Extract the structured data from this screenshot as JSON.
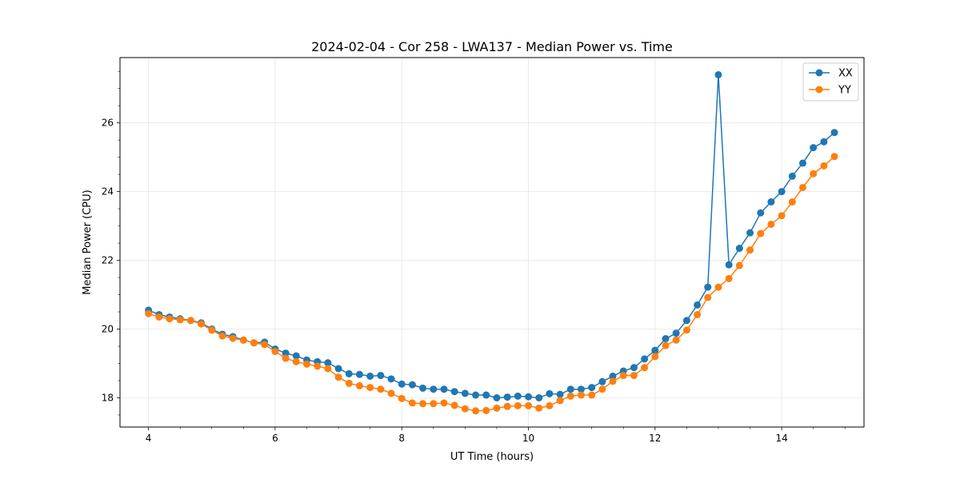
{
  "chart_data": {
    "type": "line",
    "title": "2024-02-04 - Cor 258 - LWA137 - Median Power vs. Time",
    "xlabel": "UT Time (hours)",
    "ylabel": "Median Power (CPU)",
    "xlim": [
      3.55,
      15.3
    ],
    "ylim": [
      17.15,
      27.9
    ],
    "xticks": [
      4,
      6,
      8,
      10,
      12,
      14
    ],
    "xtick_labels": [
      "4",
      "6",
      "8",
      "10",
      "12",
      "14"
    ],
    "yticks": [
      18,
      20,
      22,
      24,
      26
    ],
    "ytick_labels": [
      "18",
      "20",
      "22",
      "24",
      "26"
    ],
    "grid": true,
    "legend_position": "upper right",
    "series": [
      {
        "name": "XX",
        "color": "#1f77b4",
        "x": [
          4.0,
          4.167,
          4.333,
          4.5,
          4.667,
          4.833,
          5.0,
          5.167,
          5.333,
          5.5,
          5.667,
          5.833,
          6.0,
          6.167,
          6.333,
          6.5,
          6.667,
          6.833,
          7.0,
          7.167,
          7.333,
          7.5,
          7.667,
          7.833,
          8.0,
          8.167,
          8.333,
          8.5,
          8.667,
          8.833,
          9.0,
          9.167,
          9.333,
          9.5,
          9.667,
          9.833,
          10.0,
          10.167,
          10.333,
          10.5,
          10.667,
          10.833,
          11.0,
          11.167,
          11.333,
          11.5,
          11.667,
          11.833,
          12.0,
          12.167,
          12.333,
          12.5,
          12.667,
          12.833,
          13.0,
          13.167,
          13.333,
          13.5,
          13.667,
          13.833,
          14.0,
          14.167,
          14.333,
          14.5,
          14.667,
          14.833
        ],
        "values": [
          20.55,
          20.42,
          20.35,
          20.3,
          20.25,
          20.18,
          20.0,
          19.85,
          19.78,
          19.68,
          19.6,
          19.62,
          19.42,
          19.3,
          19.22,
          19.1,
          19.05,
          19.02,
          18.85,
          18.7,
          18.68,
          18.63,
          18.65,
          18.55,
          18.4,
          18.38,
          18.28,
          18.25,
          18.25,
          18.18,
          18.13,
          18.08,
          18.08,
          18.0,
          18.02,
          18.05,
          18.03,
          18.0,
          18.12,
          18.1,
          18.25,
          18.25,
          18.3,
          18.47,
          18.63,
          18.78,
          18.88,
          19.13,
          19.38,
          19.72,
          19.88,
          20.25,
          20.7,
          21.22,
          27.4,
          21.87,
          22.35,
          22.8,
          23.38,
          23.7,
          24.0,
          24.45,
          24.83,
          25.28,
          25.45,
          25.72
        ]
      },
      {
        "name": "YY",
        "color": "#ff7f0e",
        "x": [
          4.0,
          4.167,
          4.333,
          4.5,
          4.667,
          4.833,
          5.0,
          5.167,
          5.333,
          5.5,
          5.667,
          5.833,
          6.0,
          6.167,
          6.333,
          6.5,
          6.667,
          6.833,
          7.0,
          7.167,
          7.333,
          7.5,
          7.667,
          7.833,
          8.0,
          8.167,
          8.333,
          8.5,
          8.667,
          8.833,
          9.0,
          9.167,
          9.333,
          9.5,
          9.667,
          9.833,
          10.0,
          10.167,
          10.333,
          10.5,
          10.667,
          10.833,
          11.0,
          11.167,
          11.333,
          11.5,
          11.667,
          11.833,
          12.0,
          12.167,
          12.333,
          12.5,
          12.667,
          12.833,
          13.0,
          13.167,
          13.333,
          13.5,
          13.667,
          13.833,
          14.0,
          14.167,
          14.333,
          14.5,
          14.667,
          14.833
        ],
        "values": [
          20.45,
          20.35,
          20.3,
          20.27,
          20.25,
          20.15,
          19.97,
          19.8,
          19.73,
          19.68,
          19.6,
          19.55,
          19.35,
          19.15,
          19.05,
          18.98,
          18.92,
          18.85,
          18.6,
          18.42,
          18.35,
          18.3,
          18.25,
          18.13,
          17.98,
          17.85,
          17.83,
          17.83,
          17.85,
          17.78,
          17.68,
          17.62,
          17.63,
          17.7,
          17.75,
          17.77,
          17.77,
          17.7,
          17.77,
          17.92,
          18.05,
          18.08,
          18.08,
          18.25,
          18.48,
          18.65,
          18.65,
          18.88,
          19.2,
          19.52,
          19.68,
          19.97,
          20.42,
          20.92,
          21.22,
          21.47,
          21.85,
          22.3,
          22.78,
          23.05,
          23.3,
          23.7,
          24.12,
          24.52,
          24.75,
          25.02
        ]
      }
    ]
  }
}
